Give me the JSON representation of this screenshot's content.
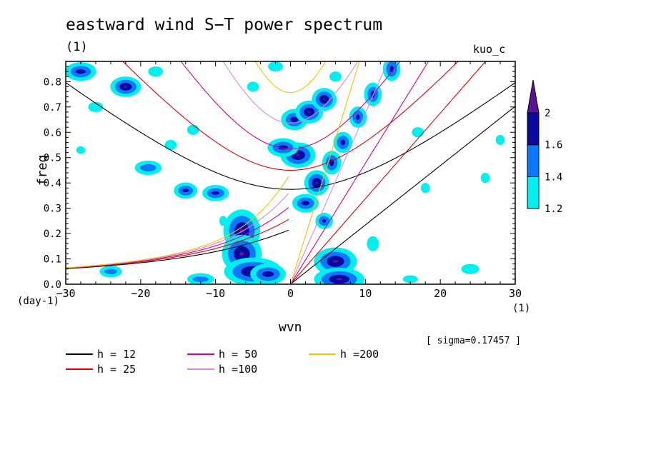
{
  "chart_data": {
    "type": "heatmap",
    "title": "eastward wind S−T power spectrum",
    "run_label": "(1)",
    "model_label": "kuo_c",
    "xlabel": "wvn",
    "ylabel": "freq",
    "x_unit": "(1)",
    "y_unit": "(day-1)",
    "xlim": [
      -30,
      30
    ],
    "ylim": [
      0.0,
      0.88
    ],
    "x_ticks": [
      "−30",
      "−20",
      "−10",
      "0",
      "10",
      "20",
      "30"
    ],
    "x_tick_values": [
      -30,
      -20,
      -10,
      0,
      10,
      20,
      30
    ],
    "y_ticks": [
      "0.0",
      "0.1",
      "0.2",
      "0.3",
      "0.4",
      "0.5",
      "0.6",
      "0.7",
      "0.8"
    ],
    "y_tick_values": [
      0.0,
      0.1,
      0.2,
      0.3,
      0.4,
      0.5,
      0.6,
      0.7,
      0.8
    ],
    "colorbar": {
      "levels": [
        1.2,
        1.4,
        1.6,
        2.0
      ],
      "labels": [
        "1.2",
        "1.4",
        "1.6",
        "2"
      ],
      "colors": [
        "#00f0f0",
        "#0a78ff",
        "#0a0aa0",
        "#5a1494"
      ]
    },
    "sigma_label": "[ sigma=0.17457 ]",
    "dispersion_curves": [
      {
        "name": "h = 12",
        "h": 12,
        "color": "#000000"
      },
      {
        "name": "h = 25",
        "h": 25,
        "color": "#e00000"
      },
      {
        "name": "h = 50",
        "h": 50,
        "color": "#d2009a"
      },
      {
        "name": "h =100",
        "h": 100,
        "color": "#d88ad8"
      },
      {
        "name": "h =200",
        "h": 200,
        "color": "#e8c800"
      }
    ],
    "power_blobs": [
      {
        "x": -6.5,
        "y": 0.21,
        "level": 3,
        "rx": 1.6,
        "ry": 0.06
      },
      {
        "x": -6.5,
        "y": 0.12,
        "level": 3,
        "rx": 1.8,
        "ry": 0.05
      },
      {
        "x": -5.0,
        "y": 0.05,
        "level": 3,
        "rx": 3.0,
        "ry": 0.03
      },
      {
        "x": -3.0,
        "y": 0.04,
        "level": 2,
        "rx": 1.8,
        "ry": 0.025
      },
      {
        "x": 6.0,
        "y": 0.09,
        "level": 3,
        "rx": 2.0,
        "ry": 0.03
      },
      {
        "x": 6.5,
        "y": 0.02,
        "level": 3,
        "rx": 2.5,
        "ry": 0.02
      },
      {
        "x": 4.5,
        "y": 0.25,
        "level": 2,
        "rx": 0.6,
        "ry": 0.015
      },
      {
        "x": 2.0,
        "y": 0.32,
        "level": 2,
        "rx": 1.2,
        "ry": 0.02
      },
      {
        "x": 3.5,
        "y": 0.4,
        "level": 3,
        "rx": 0.8,
        "ry": 0.025
      },
      {
        "x": 5.5,
        "y": 0.48,
        "level": 2,
        "rx": 0.7,
        "ry": 0.03
      },
      {
        "x": 7.0,
        "y": 0.56,
        "level": 2,
        "rx": 0.7,
        "ry": 0.025
      },
      {
        "x": 9.0,
        "y": 0.66,
        "level": 2,
        "rx": 0.6,
        "ry": 0.025
      },
      {
        "x": 11.0,
        "y": 0.75,
        "level": 2,
        "rx": 0.6,
        "ry": 0.03
      },
      {
        "x": 13.5,
        "y": 0.85,
        "level": 2,
        "rx": 0.6,
        "ry": 0.03
      },
      {
        "x": 1.0,
        "y": 0.51,
        "level": 3,
        "rx": 1.5,
        "ry": 0.025
      },
      {
        "x": 0.5,
        "y": 0.65,
        "level": 2,
        "rx": 1.2,
        "ry": 0.025
      },
      {
        "x": 2.5,
        "y": 0.68,
        "level": 3,
        "rx": 1.0,
        "ry": 0.02
      },
      {
        "x": 4.5,
        "y": 0.73,
        "level": 3,
        "rx": 0.8,
        "ry": 0.02
      },
      {
        "x": -1.0,
        "y": 0.54,
        "level": 2,
        "rx": 1.5,
        "ry": 0.02
      },
      {
        "x": -10.0,
        "y": 0.36,
        "level": 2,
        "rx": 1.2,
        "ry": 0.015
      },
      {
        "x": -14.0,
        "y": 0.37,
        "level": 2,
        "rx": 1.0,
        "ry": 0.015
      },
      {
        "x": -19.0,
        "y": 0.46,
        "level": 1,
        "rx": 1.5,
        "ry": 0.02
      },
      {
        "x": -22.0,
        "y": 0.78,
        "level": 3,
        "rx": 1.2,
        "ry": 0.015
      },
      {
        "x": -28.0,
        "y": 0.84,
        "level": 2,
        "rx": 1.5,
        "ry": 0.02
      },
      {
        "x": -24.0,
        "y": 0.05,
        "level": 1,
        "rx": 1.2,
        "ry": 0.015
      },
      {
        "x": -12.0,
        "y": 0.02,
        "level": 1,
        "rx": 1.5,
        "ry": 0.015
      }
    ],
    "faint_blobs": [
      {
        "x": -26,
        "y": 0.7,
        "rx": 1.0,
        "ry": 0.02
      },
      {
        "x": -28,
        "y": 0.53,
        "rx": 0.6,
        "ry": 0.015
      },
      {
        "x": -16,
        "y": 0.55,
        "rx": 0.8,
        "ry": 0.02
      },
      {
        "x": -13,
        "y": 0.61,
        "rx": 0.8,
        "ry": 0.02
      },
      {
        "x": -9,
        "y": 0.25,
        "rx": 0.5,
        "ry": 0.02
      },
      {
        "x": -5,
        "y": 0.78,
        "rx": 0.8,
        "ry": 0.02
      },
      {
        "x": 6,
        "y": 0.82,
        "rx": 0.8,
        "ry": 0.02
      },
      {
        "x": 17,
        "y": 0.6,
        "rx": 0.8,
        "ry": 0.02
      },
      {
        "x": 18,
        "y": 0.38,
        "rx": 0.6,
        "ry": 0.02
      },
      {
        "x": 26,
        "y": 0.42,
        "rx": 0.6,
        "ry": 0.02
      },
      {
        "x": 24,
        "y": 0.06,
        "rx": 1.2,
        "ry": 0.02
      },
      {
        "x": 16,
        "y": 0.02,
        "rx": 1.0,
        "ry": 0.015
      },
      {
        "x": 11,
        "y": 0.16,
        "rx": 0.8,
        "ry": 0.03
      },
      {
        "x": -2,
        "y": 0.86,
        "rx": 1.0,
        "ry": 0.02
      },
      {
        "x": -18,
        "y": 0.84,
        "rx": 1.0,
        "ry": 0.02
      },
      {
        "x": 28,
        "y": 0.57,
        "rx": 0.6,
        "ry": 0.02
      }
    ]
  }
}
